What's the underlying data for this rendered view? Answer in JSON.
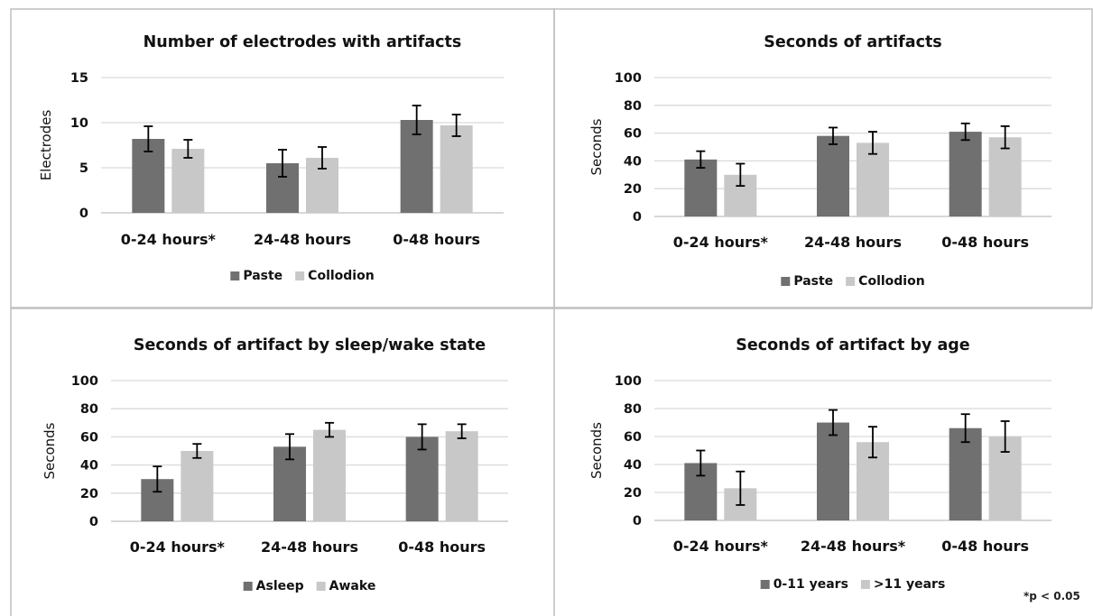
{
  "footnote": "*p < 0.05",
  "colors": {
    "dark": "#707070",
    "light": "#c8c8c8",
    "grid": "#d9d9d9",
    "text": "#111111"
  },
  "chart_data": [
    {
      "type": "bar",
      "title": "Number of electrodes with artifacts",
      "ylabel": "Electrodes",
      "xlabel": "",
      "categories": [
        "0-24 hours*",
        "24-48 hours",
        "0-48 hours"
      ],
      "ylim": [
        0,
        15
      ],
      "yticks": [
        0,
        5,
        10,
        15
      ],
      "grid": true,
      "legend_position": "bottom",
      "series": [
        {
          "name": "Paste",
          "values": [
            8.2,
            5.5,
            10.3
          ],
          "error": [
            1.4,
            1.5,
            1.6
          ]
        },
        {
          "name": "Collodion",
          "values": [
            7.1,
            6.1,
            9.7
          ],
          "error": [
            1.0,
            1.2,
            1.2
          ]
        }
      ]
    },
    {
      "type": "bar",
      "title": "Seconds of artifacts",
      "ylabel": "Seconds",
      "xlabel": "",
      "categories": [
        "0-24 hours*",
        "24-48 hours",
        "0-48 hours"
      ],
      "ylim": [
        0,
        100
      ],
      "yticks": [
        0,
        20,
        40,
        60,
        80,
        100
      ],
      "grid": true,
      "legend_position": "bottom",
      "series": [
        {
          "name": "Paste",
          "values": [
            41,
            58,
            61
          ],
          "error": [
            6,
            6,
            6
          ]
        },
        {
          "name": "Collodion",
          "values": [
            30,
            53,
            57
          ],
          "error": [
            8,
            8,
            8
          ]
        }
      ]
    },
    {
      "type": "bar",
      "title": "Seconds of artifact by sleep/wake state",
      "ylabel": "Seconds",
      "xlabel": "",
      "categories": [
        "0-24 hours*",
        "24-48 hours",
        "0-48 hours"
      ],
      "ylim": [
        0,
        100
      ],
      "yticks": [
        0,
        20,
        40,
        60,
        80,
        100
      ],
      "grid": true,
      "legend_position": "bottom",
      "series": [
        {
          "name": "Asleep",
          "values": [
            30,
            53,
            60
          ],
          "error": [
            9,
            9,
            9
          ]
        },
        {
          "name": "Awake",
          "values": [
            50,
            65,
            64
          ],
          "error": [
            5,
            5,
            5
          ]
        }
      ]
    },
    {
      "type": "bar",
      "title": "Seconds of artifact by age",
      "ylabel": "Seconds",
      "xlabel": "",
      "categories": [
        "0-24 hours*",
        "24-48 hours*",
        "0-48 hours"
      ],
      "ylim": [
        0,
        100
      ],
      "yticks": [
        0,
        20,
        40,
        60,
        80,
        100
      ],
      "grid": true,
      "legend_position": "bottom",
      "series": [
        {
          "name": "0-11 years",
          "values": [
            41,
            70,
            66
          ],
          "error": [
            9,
            9,
            10
          ]
        },
        {
          "name": ">11 years",
          "values": [
            23,
            56,
            60
          ],
          "error": [
            12,
            11,
            11
          ]
        }
      ]
    }
  ]
}
